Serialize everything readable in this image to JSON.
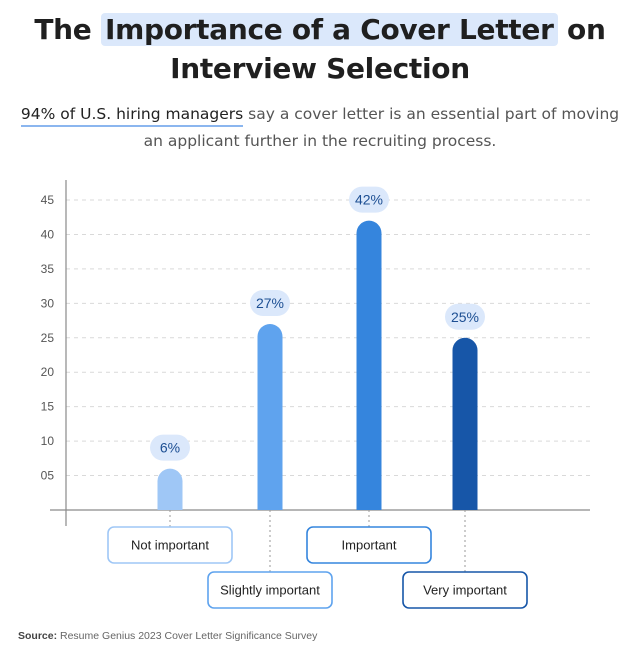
{
  "header": {
    "title_pre": "The ",
    "title_highlight": "Importance of a Cover Letter",
    "title_post": " on",
    "title_line2": "Interview Selection",
    "subtitle_emph": "94% of U.S. hiring managers",
    "subtitle_rest": " say a cover letter is an essential part of moving an applicant further in the recruiting process."
  },
  "source": {
    "label": "Source:",
    "text": " Resume Genius 2023 Cover Letter Significance Survey"
  },
  "chart_data": {
    "type": "bar",
    "categories": [
      "Not important",
      "Slightly important",
      "Important",
      "Very important"
    ],
    "values": [
      6,
      27,
      42,
      25
    ],
    "value_labels": [
      "6%",
      "27%",
      "42%",
      "25%"
    ],
    "yticks": [
      "05",
      "10",
      "15",
      "20",
      "25",
      "30",
      "35",
      "40",
      "45"
    ],
    "ytick_values": [
      5,
      10,
      15,
      20,
      25,
      30,
      35,
      40,
      45
    ],
    "ylim": [
      0,
      45
    ],
    "grid": true,
    "colors": [
      "#9fc7f6",
      "#5fa3ee",
      "#3585dd",
      "#1756a8"
    ],
    "bubble_bg": "#dbe8fb",
    "bubble_text": "#1d4f93"
  }
}
